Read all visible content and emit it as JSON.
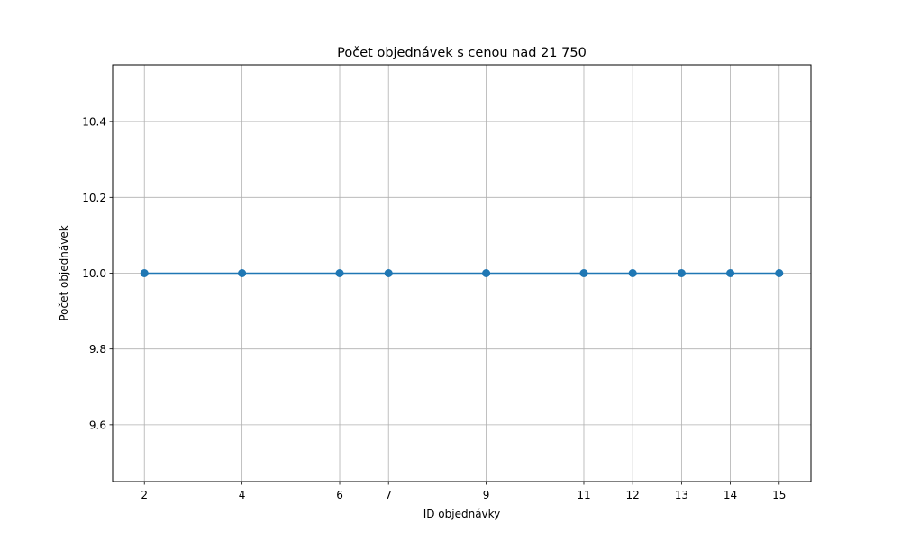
{
  "chart_data": {
    "type": "line",
    "title": "Počet objednávek s cenou nad 21 750",
    "xlabel": "ID objednávky",
    "ylabel": "Počet objednávek",
    "x": [
      2,
      4,
      6,
      7,
      9,
      11,
      12,
      13,
      14,
      15
    ],
    "series": [
      {
        "values": [
          10,
          10,
          10,
          10,
          10,
          10,
          10,
          10,
          10,
          10
        ],
        "color": "#1f77b4",
        "marker": "circle"
      }
    ],
    "xticks": [
      "2",
      "4",
      "6",
      "7",
      "9",
      "11",
      "12",
      "13",
      "14",
      "15"
    ],
    "yticks": [
      "9.6",
      "9.8",
      "10.0",
      "10.2",
      "10.4"
    ],
    "ylim": [
      9.45,
      10.55
    ],
    "grid": true,
    "grid_color": "#b0b0b0",
    "line_color": "#1f77b4"
  }
}
